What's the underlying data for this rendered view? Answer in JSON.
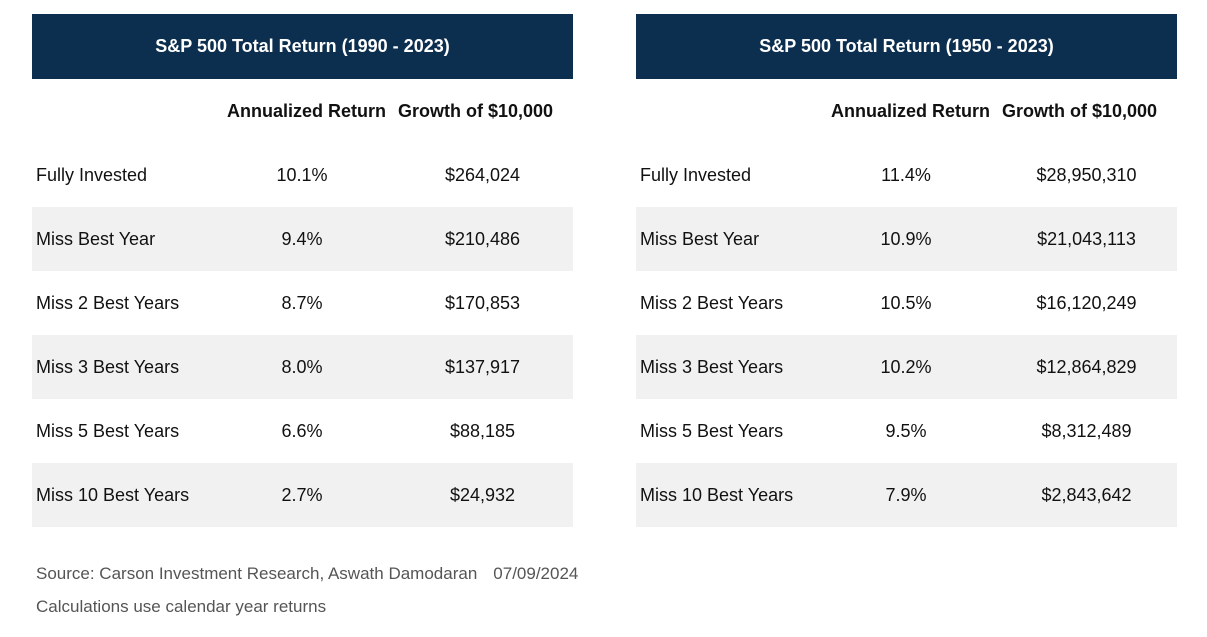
{
  "chart_data": [
    {
      "type": "table",
      "title": "S&P 500 Total Return (1990 - 2023)",
      "columns": [
        "",
        "Annualized Return",
        "Growth of $10,000"
      ],
      "rows": [
        {
          "label": "Fully Invested",
          "annualized_return": "10.1%",
          "growth": "$264,024"
        },
        {
          "label": "Miss Best Year",
          "annualized_return": "9.4%",
          "growth": "$210,486"
        },
        {
          "label": "Miss 2 Best Years",
          "annualized_return": "8.7%",
          "growth": "$170,853"
        },
        {
          "label": "Miss 3 Best Years",
          "annualized_return": "8.0%",
          "growth": "$137,917"
        },
        {
          "label": "Miss 5 Best Years",
          "annualized_return": "6.6%",
          "growth": "$88,185"
        },
        {
          "label": "Miss 10 Best Years",
          "annualized_return": "2.7%",
          "growth": "$24,932"
        }
      ]
    },
    {
      "type": "table",
      "title": "S&P 500 Total Return (1950 - 2023)",
      "columns": [
        "",
        "Annualized Return",
        "Growth of $10,000"
      ],
      "rows": [
        {
          "label": "Fully Invested",
          "annualized_return": "11.4%",
          "growth": "$28,950,310"
        },
        {
          "label": "Miss Best Year",
          "annualized_return": "10.9%",
          "growth": "$21,043,113"
        },
        {
          "label": "Miss 2 Best Years",
          "annualized_return": "10.5%",
          "growth": "$16,120,249"
        },
        {
          "label": "Miss 3 Best Years",
          "annualized_return": "10.2%",
          "growth": "$12,864,829"
        },
        {
          "label": "Miss 5 Best Years",
          "annualized_return": "9.5%",
          "growth": "$8,312,489"
        },
        {
          "label": "Miss 10 Best Years",
          "annualized_return": "7.9%",
          "growth": "$2,843,642"
        }
      ]
    }
  ],
  "footer": {
    "source": "Source: Carson Investment Research, Aswath Damodaran",
    "date": "07/09/2024",
    "note": "Calculations use calendar year returns"
  },
  "colors": {
    "header_bg": "#0d2f4f",
    "header_text": "#ffffff",
    "stripe": "#f1f1f1"
  }
}
